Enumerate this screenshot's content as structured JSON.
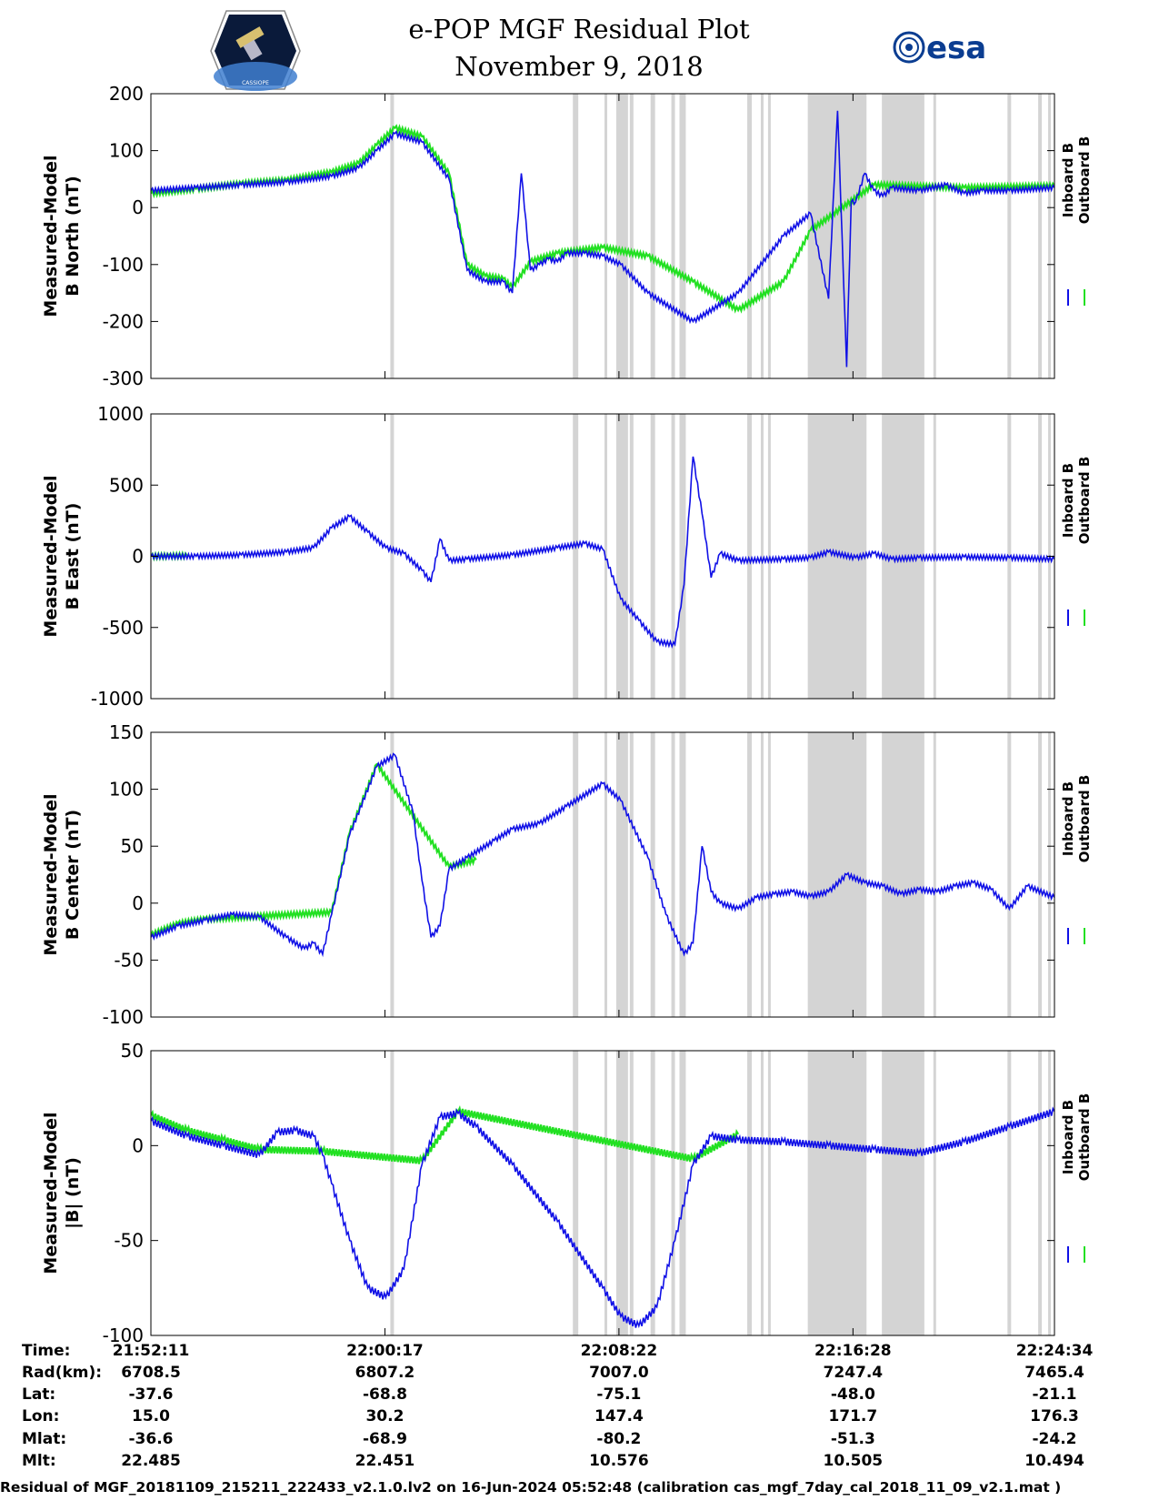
{
  "header": {
    "title_line1": "e-POP MGF Residual Plot",
    "title_line2": "November 9, 2018",
    "left_logo": "cassiope-mission-logo",
    "left_logo_text": "CASSIOPE",
    "right_logo_text": "esa"
  },
  "colors": {
    "inboard": "#1010e6",
    "outboard": "#22e022",
    "gap_shading": "#d4d4d4"
  },
  "chart_data": [
    {
      "type": "line",
      "ylabel_line1": "Measured-Model",
      "ylabel_line2": "B North (nT)",
      "ylim": [
        -300,
        200
      ],
      "yticks": [
        200,
        100,
        0,
        -100,
        -200,
        -300
      ],
      "ytick_labels": [
        "200",
        "100",
        "0",
        "-100",
        "-200",
        "-300"
      ],
      "legend": [
        "Inboard B",
        "Outboard B"
      ],
      "series": [
        {
          "name": "Inboard B",
          "x": [
            0,
            5,
            10,
            15,
            20,
            23,
            25,
            27,
            30,
            33,
            35,
            37,
            39,
            40,
            41,
            42,
            43,
            44,
            45,
            46,
            48,
            50,
            52,
            55,
            60,
            65,
            70,
            73,
            75,
            76,
            77,
            77.5,
            78,
            79,
            80,
            81,
            82,
            85,
            88,
            90,
            92,
            95,
            100
          ],
          "values": [
            30,
            35,
            40,
            45,
            55,
            70,
            100,
            130,
            115,
            50,
            -110,
            -130,
            -130,
            -150,
            60,
            -110,
            -100,
            -90,
            -95,
            -80,
            -80,
            -85,
            -100,
            -150,
            -200,
            -150,
            -50,
            -10,
            -160,
            170,
            -280,
            10,
            10,
            60,
            30,
            20,
            35,
            30,
            40,
            25,
            30,
            30,
            35
          ]
        },
        {
          "name": "Outboard B",
          "x": [
            0,
            5,
            10,
            15,
            20,
            23,
            25,
            27,
            30,
            33,
            35,
            37,
            39,
            40,
            42,
            45,
            50,
            55,
            60,
            65,
            70,
            73,
            80,
            90,
            100
          ],
          "values": [
            25,
            33,
            42,
            48,
            62,
            78,
            110,
            140,
            125,
            60,
            -100,
            -120,
            -125,
            -140,
            -95,
            -80,
            -70,
            -85,
            -130,
            -180,
            -130,
            -40,
            40,
            35,
            38
          ]
        }
      ],
      "shaded_intervals": [
        [
          26.5,
          26.9
        ],
        [
          46.7,
          47.3
        ],
        [
          50.2,
          50.5
        ],
        [
          51.5,
          52.8
        ],
        [
          53.0,
          53.4
        ],
        [
          55.3,
          55.8
        ],
        [
          57.6,
          58.0
        ],
        [
          58.5,
          59.2
        ],
        [
          66.0,
          66.5
        ],
        [
          67.5,
          67.8
        ],
        [
          68.3,
          68.6
        ],
        [
          72.7,
          79.2
        ],
        [
          80.9,
          85.6
        ],
        [
          86.6,
          86.9
        ],
        [
          94.8,
          95.2
        ],
        [
          98.2,
          98.6
        ],
        [
          99.3,
          99.6
        ]
      ]
    },
    {
      "type": "line",
      "ylabel_line1": "Measured-Model",
      "ylabel_line2": "B East (nT)",
      "ylim": [
        -1000,
        1000
      ],
      "yticks": [
        1000,
        500,
        0,
        -500,
        -1000
      ],
      "ytick_labels": [
        "1000",
        "500",
        "0",
        "-500",
        "-1000"
      ],
      "legend": [
        "Inboard B",
        "Outboard B"
      ],
      "series": [
        {
          "name": "Inboard B",
          "x": [
            0,
            5,
            10,
            15,
            18,
            20,
            22,
            24,
            26,
            28,
            30,
            31,
            32,
            33,
            35,
            40,
            45,
            48,
            50,
            52,
            54,
            56,
            58,
            59,
            60,
            61,
            62,
            63,
            65,
            70,
            73,
            75,
            78,
            80,
            82,
            85,
            90,
            95,
            100
          ],
          "values": [
            0,
            0,
            10,
            30,
            60,
            200,
            280,
            170,
            60,
            20,
            -100,
            -180,
            120,
            -30,
            -20,
            10,
            60,
            90,
            50,
            -300,
            -450,
            -600,
            -620,
            -200,
            700,
            300,
            -150,
            20,
            -30,
            -20,
            -10,
            30,
            -10,
            20,
            -20,
            -10,
            -5,
            -10,
            -20
          ]
        },
        {
          "name": "Outboard B",
          "x": [
            0,
            2,
            4
          ],
          "values": [
            0,
            2,
            4
          ]
        }
      ],
      "shaded_intervals": [
        [
          26.5,
          26.9
        ],
        [
          46.7,
          47.3
        ],
        [
          50.2,
          50.5
        ],
        [
          51.5,
          52.8
        ],
        [
          53.0,
          53.4
        ],
        [
          55.3,
          55.8
        ],
        [
          57.6,
          58.0
        ],
        [
          58.5,
          59.2
        ],
        [
          66.0,
          66.5
        ],
        [
          67.5,
          67.8
        ],
        [
          68.3,
          68.6
        ],
        [
          72.7,
          79.2
        ],
        [
          80.9,
          85.6
        ],
        [
          86.6,
          86.9
        ],
        [
          94.8,
          95.2
        ],
        [
          98.2,
          98.6
        ],
        [
          99.3,
          99.6
        ]
      ]
    },
    {
      "type": "line",
      "ylabel_line1": "Measured-Model",
      "ylabel_line2": "B Center (nT)",
      "ylim": [
        -100,
        150
      ],
      "yticks": [
        150,
        100,
        50,
        0,
        -50,
        -100
      ],
      "ytick_labels": [
        "150",
        "100",
        "50",
        "0",
        "-50",
        "-100"
      ],
      "legend": [
        "Inboard B",
        "Outboard B"
      ],
      "series": [
        {
          "name": "Inboard B",
          "x": [
            0,
            3,
            6,
            9,
            12,
            15,
            17,
            18,
            19,
            20,
            22,
            25,
            27,
            29,
            30,
            31,
            32,
            33,
            35,
            38,
            40,
            43,
            46,
            50,
            52,
            55,
            57,
            59,
            60,
            61,
            62,
            63,
            65,
            67,
            69,
            71,
            73,
            75,
            77,
            79,
            81,
            83,
            85,
            87,
            89,
            91,
            93,
            95,
            97,
            100
          ],
          "values": [
            -30,
            -20,
            -15,
            -10,
            -12,
            -30,
            -40,
            -35,
            -45,
            -10,
            60,
            120,
            130,
            80,
            20,
            -30,
            -20,
            30,
            40,
            55,
            65,
            70,
            85,
            105,
            90,
            40,
            -10,
            -45,
            -35,
            50,
            10,
            0,
            -5,
            5,
            8,
            10,
            6,
            10,
            25,
            18,
            15,
            8,
            12,
            10,
            15,
            18,
            12,
            -5,
            15,
            5
          ]
        },
        {
          "name": "Outboard B",
          "x": [
            0,
            3,
            6,
            20,
            22,
            25,
            33,
            36
          ],
          "values": [
            -28,
            -18,
            -14,
            -8,
            62,
            122,
            32,
            38
          ]
        }
      ],
      "shaded_intervals": [
        [
          26.5,
          26.9
        ],
        [
          46.7,
          47.3
        ],
        [
          50.2,
          50.5
        ],
        [
          51.5,
          52.8
        ],
        [
          53.0,
          53.4
        ],
        [
          55.3,
          55.8
        ],
        [
          57.6,
          58.0
        ],
        [
          58.5,
          59.2
        ],
        [
          66.0,
          66.5
        ],
        [
          67.5,
          67.8
        ],
        [
          68.3,
          68.6
        ],
        [
          72.7,
          79.2
        ],
        [
          80.9,
          85.6
        ],
        [
          86.6,
          86.9
        ],
        [
          94.8,
          95.2
        ],
        [
          98.2,
          98.6
        ],
        [
          99.3,
          99.6
        ]
      ]
    },
    {
      "type": "line",
      "ylabel_line1": "Measured-Model",
      "ylabel_line2": "|B| (nT)",
      "ylim": [
        -100,
        50
      ],
      "yticks": [
        50,
        0,
        -50,
        -100
      ],
      "ytick_labels": [
        "50",
        "0",
        "-50",
        "-100"
      ],
      "legend": [
        "Inboard B",
        "Outboard B"
      ],
      "series": [
        {
          "name": "Inboard B",
          "x": [
            0,
            4,
            8,
            12,
            14,
            16,
            18,
            19,
            20,
            22,
            24,
            26,
            28,
            30,
            32,
            34,
            36,
            40,
            45,
            50,
            52,
            54,
            56,
            58,
            60,
            62,
            65,
            70,
            75,
            80,
            85,
            90,
            95,
            100
          ],
          "values": [
            13,
            5,
            0,
            -5,
            7,
            8,
            5,
            -5,
            -20,
            -50,
            -75,
            -80,
            -65,
            -10,
            15,
            17,
            10,
            -10,
            -40,
            -75,
            -90,
            -95,
            -85,
            -50,
            -10,
            5,
            3,
            2,
            0,
            -2,
            -4,
            2,
            10,
            18
          ]
        },
        {
          "name": "Outboard B",
          "x": [
            0,
            4,
            8,
            12,
            19,
            30,
            34,
            60,
            65
          ],
          "values": [
            16,
            8,
            3,
            -2,
            -3,
            -8,
            18,
            -7,
            6
          ]
        }
      ],
      "shaded_intervals": [
        [
          26.5,
          26.9
        ],
        [
          46.7,
          47.3
        ],
        [
          50.2,
          50.5
        ],
        [
          51.5,
          52.8
        ],
        [
          53.0,
          53.4
        ],
        [
          55.3,
          55.8
        ],
        [
          57.6,
          58.0
        ],
        [
          58.5,
          59.2
        ],
        [
          66.0,
          66.5
        ],
        [
          67.5,
          67.8
        ],
        [
          68.3,
          68.6
        ],
        [
          72.7,
          79.2
        ],
        [
          80.9,
          85.6
        ],
        [
          86.6,
          86.9
        ],
        [
          94.8,
          95.2
        ],
        [
          98.2,
          98.6
        ],
        [
          99.3,
          99.6
        ]
      ]
    }
  ],
  "orbit_table": {
    "row_labels": [
      "Time:",
      "Rad(km):",
      "Lat:",
      "Lon:",
      "Mlat:",
      "Mlt:"
    ],
    "columns": [
      [
        "21:52:11",
        "6708.5",
        "-37.6",
        "15.0",
        "-36.6",
        "22.485"
      ],
      [
        "22:00:17",
        "6807.2",
        "-68.8",
        "30.2",
        "-68.9",
        "22.451"
      ],
      [
        "22:08:22",
        "7007.0",
        "-75.1",
        "147.4",
        "-80.2",
        "10.576"
      ],
      [
        "22:16:28",
        "7247.4",
        "-48.0",
        "171.7",
        "-51.3",
        "10.505"
      ],
      [
        "22:24:34",
        "7465.4",
        "-21.1",
        "176.3",
        "-24.2",
        "10.494"
      ]
    ]
  },
  "footer": "Residual of MGF_20181109_215211_222433_v2.1.0.lv2 on 16-Jun-2024 05:52:48 (calibration cas_mgf_7day_cal_2018_11_09_v2.1.mat )"
}
